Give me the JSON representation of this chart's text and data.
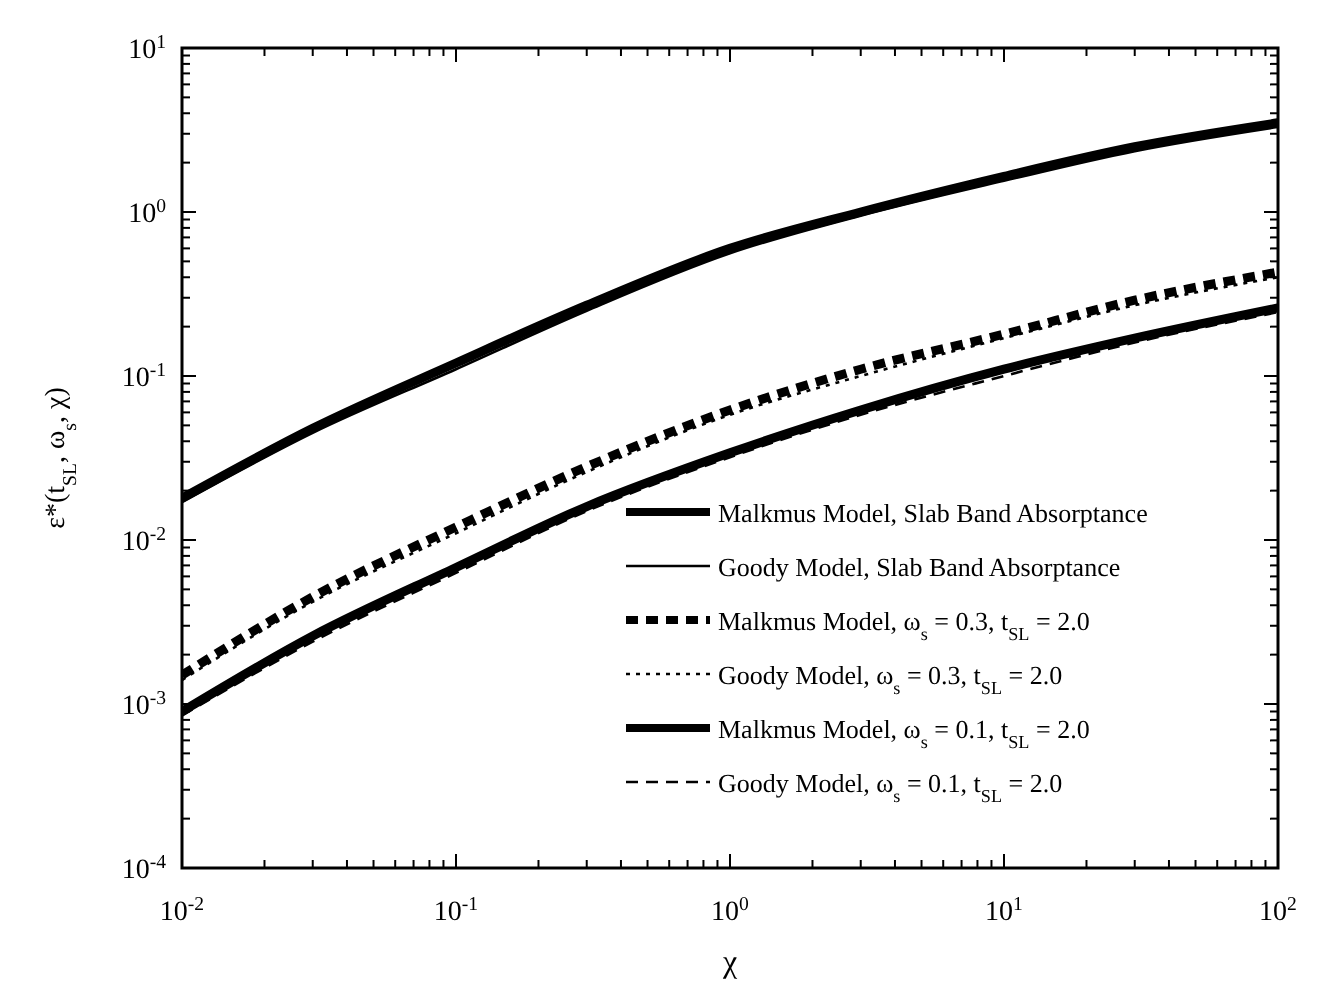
{
  "chart_data": {
    "type": "line",
    "xlabel": "χ",
    "ylabel": "ε*(t$_{SL}$, ω$_{s}$, χ)",
    "log": "xy",
    "grid": false,
    "legend": "bottom right",
    "xlim": [
      0.01,
      100
    ],
    "xticks": [
      {
        "value": 0.01,
        "label": "10$^{-2}$"
      },
      {
        "value": 0.1,
        "label": "10$^{-1}$"
      },
      {
        "value": 1,
        "label": "10$^{0}$"
      },
      {
        "value": 10,
        "label": "10$^{1}$"
      },
      {
        "value": 100,
        "label": "10$^{2}$"
      }
    ],
    "ylim": [
      0.0001,
      10
    ],
    "yticks": [
      {
        "value": 0.0001,
        "label": "10$^{-4}$"
      },
      {
        "value": 0.001,
        "label": "10$^{-3}$"
      },
      {
        "value": 0.01,
        "label": "10$^{-2}$"
      },
      {
        "value": 0.1,
        "label": "10$^{-1}$"
      },
      {
        "value": 1,
        "label": "10$^{0}$"
      },
      {
        "value": 10,
        "label": "10$^{1}$"
      }
    ],
    "x": [
      0.01,
      0.03,
      0.1,
      0.3,
      1,
      3,
      10,
      30,
      100
    ],
    "series": [
      {
        "name": "Malkmus Model, Slab Band Absorptance",
        "color": "#000000",
        "line_style": "solid",
        "values": [
          0.018,
          0.048,
          0.12,
          0.27,
          0.6,
          1.0,
          1.65,
          2.5,
          3.5
        ]
      },
      {
        "name": "Goody Model, Slab Band Absorptance",
        "color": "#000000",
        "line_style": "solid",
        "values": [
          0.017,
          0.045,
          0.11,
          0.25,
          0.56,
          0.95,
          1.55,
          2.35,
          3.3
        ]
      },
      {
        "name": "Malkmus Model, ω$_{s}$ = 0.3, t$_{SL}$ = 2.0",
        "color": "#000000",
        "line_style": "dashed",
        "values": [
          0.0015,
          0.0045,
          0.012,
          0.028,
          0.062,
          0.11,
          0.18,
          0.29,
          0.43
        ]
      },
      {
        "name": "Goody Model,  ω$_{s}$ = 0.3, t$_{SL}$ = 2.0",
        "color": "#000000",
        "line_style": "dotted",
        "values": [
          0.0014,
          0.0042,
          0.011,
          0.026,
          0.058,
          0.1,
          0.17,
          0.27,
          0.4
        ]
      },
      {
        "name": "Malkmus Model,  ω$_{s}$ = 0.1, t$_{SL}$ = 2.0",
        "color": "#000000",
        "line_style": "solid",
        "values": [
          0.0009,
          0.0026,
          0.0068,
          0.016,
          0.034,
          0.062,
          0.11,
          0.17,
          0.26
        ]
      },
      {
        "name": "Goody Model,  ω$_{s}$ = 0.1, t$_{SL}$ = 2.0",
        "color": "#000000",
        "line_style": "dashed",
        "values": [
          0.00085,
          0.0024,
          0.0063,
          0.015,
          0.032,
          0.058,
          0.1,
          0.16,
          0.245
        ]
      }
    ]
  }
}
